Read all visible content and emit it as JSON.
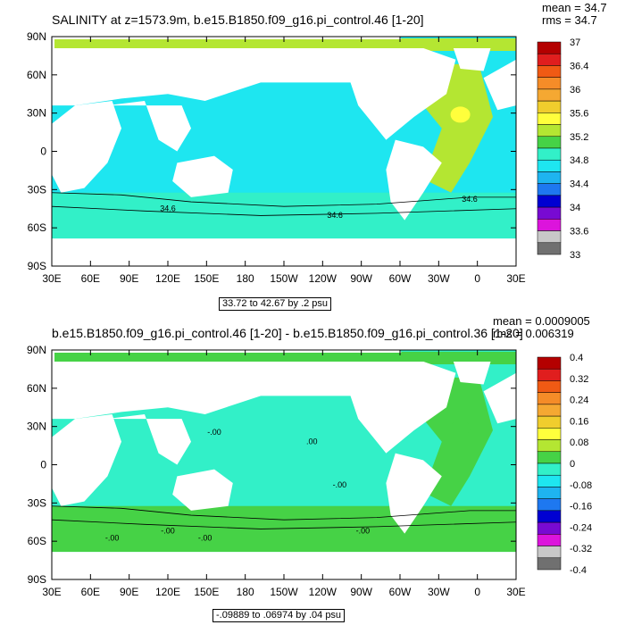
{
  "panels": [
    {
      "title": "SALINITY at z=1573.9m, b.e15.B1850.f09_g16.pi_control.46 [1-20]",
      "mean_label": "mean = 34.7",
      "rms_label": "rms = 34.7",
      "range_note": "33.72 to 42.67 by .2 psu",
      "ylabels": [
        "90N",
        "60N",
        "30N",
        "0",
        "30S",
        "60S",
        "90S"
      ],
      "xlabels": [
        "30E",
        "60E",
        "90E",
        "120E",
        "150E",
        "180",
        "150W",
        "120W",
        "90W",
        "60W",
        "30W",
        "0",
        "30E"
      ],
      "colorbar_labels": [
        "37",
        "36.4",
        "36",
        "35.6",
        "35.2",
        "34.8",
        "34.4",
        "34",
        "33.6",
        "33"
      ],
      "colorbar_colors": [
        "#b40000",
        "#e01e1e",
        "#f05a14",
        "#f58c28",
        "#f5a832",
        "#f0cd2d",
        "#ffff3c",
        "#b4e632",
        "#46d246",
        "#32f0c8",
        "#1ee6f0",
        "#1eb4f0",
        "#1e78f0",
        "#0000d2",
        "#780ad2",
        "#dc14dc",
        "#c8c8c8",
        "#707070"
      ],
      "contour_labels": [
        "34.6",
        "34.6",
        "34.6"
      ],
      "fill_colors": {
        "ocean": "#1ee6f0",
        "atlantic": "#b4e632",
        "med": "#ffff3c",
        "southern": "#32f0c8"
      }
    },
    {
      "title": "b.e15.B1850.f09_g16.pi_control.46 [1-20] - b.e15.B1850.f09_g16.pi_control.36 [1-20]",
      "mean_label": "mean = 0.0009005",
      "rms_label": "rms = 0.006319",
      "range_note": "-.09889 to .06974 by .04 psu",
      "ylabels": [
        "90N",
        "60N",
        "30N",
        "0",
        "30S",
        "60S",
        "90S"
      ],
      "xlabels": [
        "30E",
        "60E",
        "90E",
        "120E",
        "150E",
        "180",
        "150W",
        "120W",
        "90W",
        "60W",
        "30W",
        "0",
        "30E"
      ],
      "colorbar_labels": [
        "0.4",
        "0.32",
        "0.24",
        "0.16",
        "0.08",
        "0",
        "-0.08",
        "-0.16",
        "-0.24",
        "-0.32",
        "-0.4"
      ],
      "colorbar_colors": [
        "#b40000",
        "#e01e1e",
        "#f05a14",
        "#f58c28",
        "#f5a832",
        "#f0cd2d",
        "#ffff3c",
        "#b4e632",
        "#46d246",
        "#32f0c8",
        "#1ee6f0",
        "#1eb4f0",
        "#1e78f0",
        "#0000d2",
        "#780ad2",
        "#dc14dc",
        "#c8c8c8",
        "#707070"
      ],
      "contour_labels": [
        "-.00",
        ".00",
        "-.00",
        "-.00",
        "-.00",
        "-.00",
        "-.00"
      ],
      "fill_colors": {
        "ocean": "#32f0c8",
        "atlantic": "#46d246",
        "med": "#46d246",
        "southern": "#46d246"
      }
    }
  ]
}
